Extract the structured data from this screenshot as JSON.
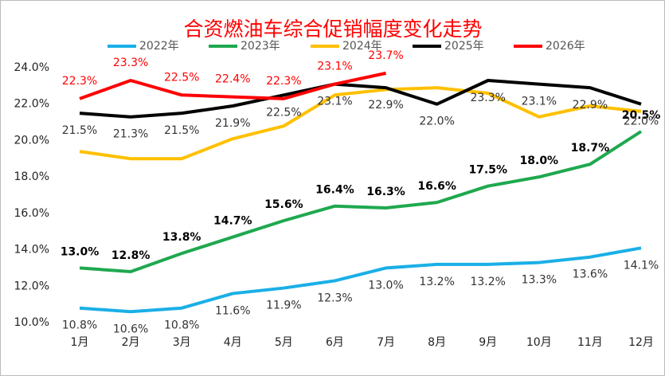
{
  "chart_data": {
    "type": "line",
    "title": "合资燃油车综合促销幅度变化走势",
    "categories": [
      "1月",
      "2月",
      "3月",
      "4月",
      "5月",
      "6月",
      "7月",
      "8月",
      "9月",
      "10月",
      "11月",
      "12月"
    ],
    "ylim": [
      10,
      24
    ],
    "yticks": [
      {
        "value": 10,
        "label": "10.0%"
      },
      {
        "value": 12,
        "label": "12.0%"
      },
      {
        "value": 14,
        "label": "14.0%"
      },
      {
        "value": 16,
        "label": "16.0%"
      },
      {
        "value": 18,
        "label": "18.0%"
      },
      {
        "value": 20,
        "label": "20.0%"
      },
      {
        "value": 22,
        "label": "22.0%"
      },
      {
        "value": 24,
        "label": "24.0%"
      }
    ],
    "grid": false,
    "series": [
      {
        "name": "2022年",
        "color": "#1aafe6",
        "values": [
          10.8,
          10.6,
          10.8,
          11.6,
          11.9,
          12.3,
          13.0,
          13.2,
          13.2,
          13.3,
          13.6,
          14.1
        ],
        "value_labels": [
          "10.8%",
          "10.6%",
          "10.8%",
          "11.6%",
          "11.9%",
          "12.3%",
          "13.0%",
          "13.2%",
          "13.2%",
          "13.3%",
          "13.6%",
          "14.1%"
        ]
      },
      {
        "name": "2023年",
        "color": "#1fa84f",
        "values": [
          13.0,
          12.8,
          13.8,
          14.7,
          15.6,
          16.4,
          16.3,
          16.6,
          17.5,
          18.0,
          18.7,
          20.5
        ],
        "value_labels": [
          "13.0%",
          "12.8%",
          "13.8%",
          "14.7%",
          "15.6%",
          "16.4%",
          "16.3%",
          "16.6%",
          "17.5%",
          "18.0%",
          "18.7%",
          "20.5%"
        ]
      },
      {
        "name": "2024年",
        "color": "#ffc000",
        "values": [
          19.4,
          19.0,
          19.0,
          20.1,
          20.8,
          22.5,
          22.8,
          22.9,
          22.6,
          21.3,
          21.9,
          21.6
        ]
      },
      {
        "name": "2025年",
        "color": "#000000",
        "values": [
          21.5,
          21.3,
          21.5,
          21.9,
          22.5,
          23.1,
          22.9,
          22.0,
          23.3,
          23.1,
          22.9,
          22.0
        ],
        "value_labels": [
          "21.5%",
          "21.3%",
          "21.5%",
          "21.9%",
          "22.5%",
          "23.1%",
          "22.9%",
          "22.0%",
          "23.3%",
          "23.1%",
          "22.9%",
          "22.0%"
        ]
      },
      {
        "name": "2026年",
        "color": "#ff0000",
        "values": [
          22.3,
          23.3,
          22.5,
          22.4,
          22.3,
          23.1,
          23.7,
          null,
          null,
          null,
          null,
          null
        ],
        "value_labels": [
          "22.3%",
          "23.3%",
          "22.5%",
          "22.4%",
          "22.3%",
          "23.1%",
          "23.7%",
          null,
          null,
          null,
          null,
          null
        ]
      }
    ]
  }
}
